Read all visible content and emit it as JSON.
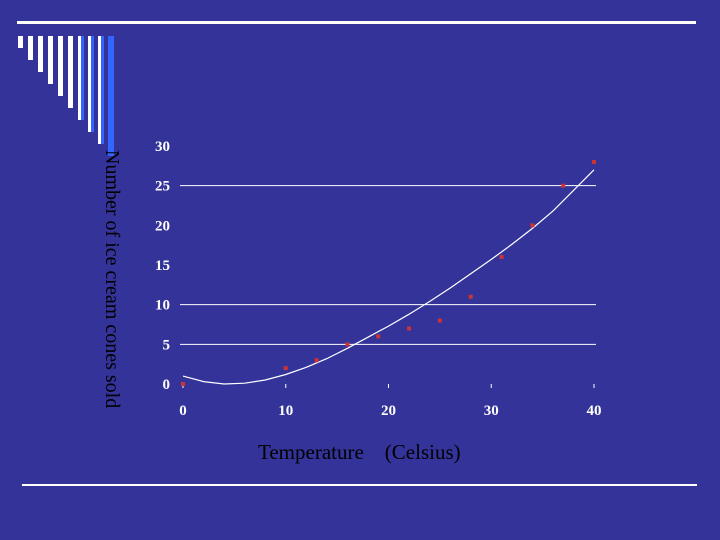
{
  "colors": {
    "background": "#333399",
    "lines": "#ffffff",
    "points": "#cc3333",
    "curve": "#ffffff",
    "labels": "#000000",
    "ticks": "#ffffff",
    "stripes": [
      "#ffffff",
      "#3366ff"
    ]
  },
  "chart_data": {
    "type": "scatter",
    "title": "",
    "xlabel": "Temperature    (Celsius)",
    "ylabel": "Number of ice cream cones sold",
    "xlim": [
      0,
      40
    ],
    "ylim": [
      0,
      30
    ],
    "xticks": [
      0,
      10,
      20,
      30,
      40
    ],
    "yticks": [
      0,
      5,
      10,
      15,
      20,
      25,
      30
    ],
    "gridlines_y": [
      5,
      10,
      25
    ],
    "series": [
      {
        "x": [
          0,
          10,
          13,
          16,
          19,
          22,
          25,
          28,
          31,
          34,
          37,
          40
        ],
        "y": [
          0,
          2,
          3,
          5,
          6,
          7,
          8,
          11,
          16,
          20,
          25,
          28
        ]
      }
    ],
    "trendline": {
      "type": "quadratic",
      "x": [
        0,
        2,
        4,
        6,
        8,
        10,
        12,
        14,
        16,
        18,
        20,
        22,
        24,
        26,
        28,
        30,
        32,
        34,
        36,
        38,
        40
      ],
      "y": [
        1,
        0.3,
        0,
        0.1,
        0.5,
        1.2,
        2.1,
        3.2,
        4.5,
        5.9,
        7.3,
        8.8,
        10.4,
        12.1,
        13.9,
        15.7,
        17.6,
        19.6,
        21.8,
        24.4,
        27
      ]
    }
  }
}
